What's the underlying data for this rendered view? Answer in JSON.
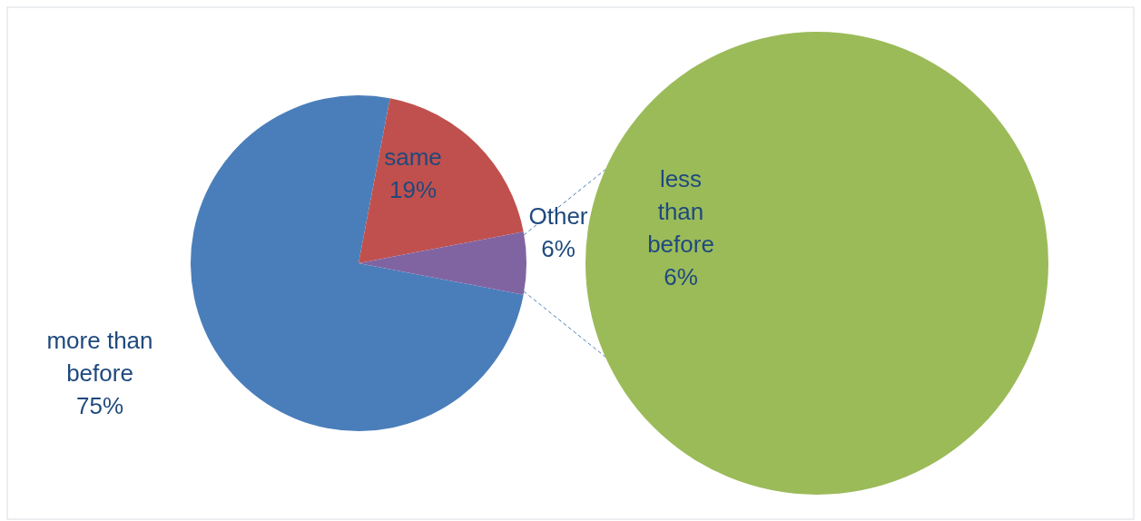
{
  "chart_data": [
    {
      "type": "pie",
      "categories": [
        "more than before",
        "same",
        "Other"
      ],
      "values": [
        75,
        19,
        6
      ],
      "colors": [
        "#4a7ebb",
        "#c0504d",
        "#8064a2"
      ],
      "value_labels": [
        "75%",
        "19%",
        "6%"
      ]
    },
    {
      "type": "pie",
      "categories": [
        "less than before"
      ],
      "values": [
        6
      ],
      "colors": [
        "#9bbb59"
      ],
      "value_labels": [
        "6%"
      ]
    }
  ]
}
